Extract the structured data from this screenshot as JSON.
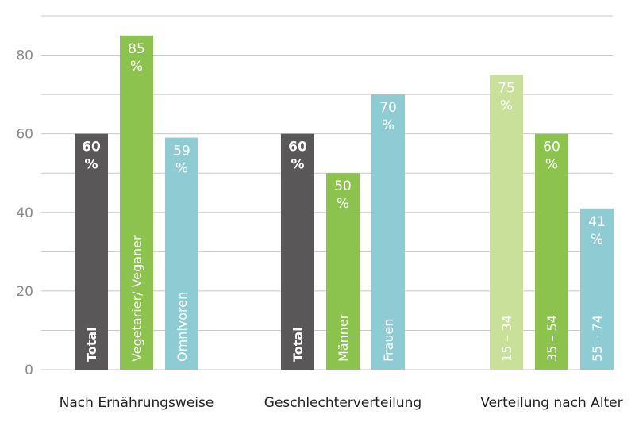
{
  "chart_data": {
    "type": "bar",
    "ylim": [
      0,
      90
    ],
    "yticks": [
      0,
      20,
      40,
      60,
      80
    ],
    "grid": true,
    "groups": [
      {
        "label": "Nach Ernährungsweise",
        "bars": [
          {
            "category": "Total",
            "value": 60,
            "value_label": "60",
            "unit": "%",
            "color": "#5a5758",
            "text_color": "#ffffff",
            "bold": true
          },
          {
            "category": "Vegetarier/ Veganer",
            "value": 85,
            "value_label": "85",
            "unit": "%",
            "color": "#8cc34f",
            "text_color": "#ffffff",
            "bold": false
          },
          {
            "category": "Omnivoren",
            "value": 59,
            "value_label": "59",
            "unit": "%",
            "color": "#8fcbd3",
            "text_color": "#ffffff",
            "bold": false
          }
        ]
      },
      {
        "label": "Geschlechterverteilung",
        "bars": [
          {
            "category": "Total",
            "value": 60,
            "value_label": "60",
            "unit": "%",
            "color": "#5a5758",
            "text_color": "#ffffff",
            "bold": true
          },
          {
            "category": "Männer",
            "value": 50,
            "value_label": "50",
            "unit": "%",
            "color": "#8cc34f",
            "text_color": "#ffffff",
            "bold": false
          },
          {
            "category": "Frauen",
            "value": 70,
            "value_label": "70",
            "unit": "%",
            "color": "#8fcbd3",
            "text_color": "#ffffff",
            "bold": false
          }
        ]
      },
      {
        "label": "Verteilung nach Alter",
        "bars": [
          {
            "category": "15 – 34",
            "value": 75,
            "value_label": "75",
            "unit": "%",
            "color": "#c9e09a",
            "text_color": "#ffffff",
            "bold": false
          },
          {
            "category": "35 – 54",
            "value": 60,
            "value_label": "60",
            "unit": "%",
            "color": "#8cc34f",
            "text_color": "#ffffff",
            "bold": false
          },
          {
            "category": "55 – 74",
            "value": 41,
            "value_label": "41",
            "unit": "%",
            "color": "#8fcbd3",
            "text_color": "#ffffff",
            "bold": false
          }
        ]
      }
    ]
  }
}
